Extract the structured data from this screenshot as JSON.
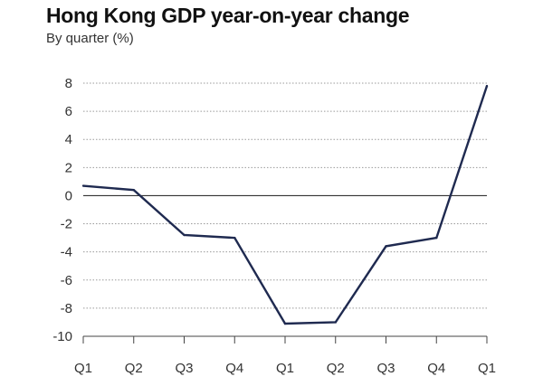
{
  "title": "Hong Kong GDP year-on-year change",
  "subtitle": "By quarter (%)",
  "colors": {
    "line": "#1f2a50",
    "gridline": "#9a9a9a",
    "zero_line": "#333333",
    "axis": "#444444",
    "text": "#333333"
  },
  "chart_data": {
    "type": "line",
    "title": "Hong Kong GDP year-on-year change",
    "subtitle": "By quarter (%)",
    "xlabel": "",
    "ylabel": "",
    "categories": [
      "Q1",
      "Q2",
      "Q3",
      "Q4",
      "Q1",
      "Q2",
      "Q3",
      "Q4",
      "Q1"
    ],
    "series": [
      {
        "values": [
          0.7,
          0.4,
          -2.8,
          -3.0,
          -9.1,
          -9.0,
          -3.6,
          -3.0,
          7.8
        ]
      }
    ],
    "ylim": [
      -10,
      8
    ],
    "yticks": [
      8,
      6,
      4,
      2,
      0,
      -2,
      -4,
      -6,
      -8,
      -10
    ],
    "grid": "horizontal dotted",
    "legend": "none"
  }
}
